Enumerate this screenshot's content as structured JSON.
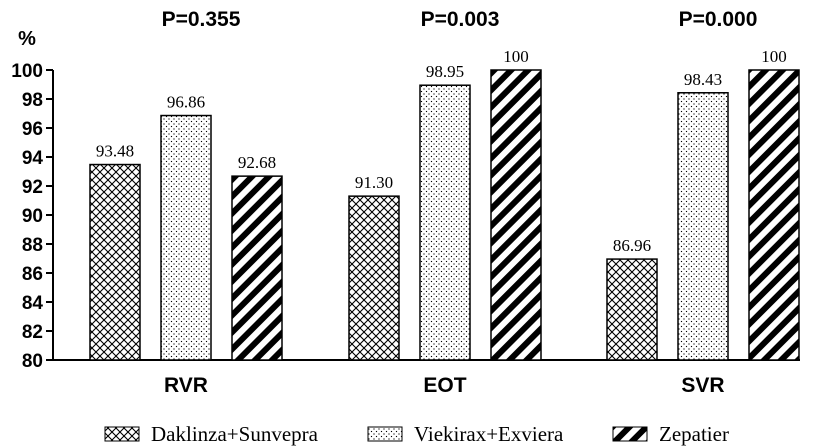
{
  "chart_data": {
    "type": "bar",
    "ylabel": "%",
    "ylim": [
      80,
      100
    ],
    "yticks": [
      80,
      82,
      84,
      86,
      88,
      90,
      92,
      94,
      96,
      98,
      100
    ],
    "categories": [
      "RVR",
      "EOT",
      "SVR"
    ],
    "pvalues": [
      "P=0.355",
      "P=0.003",
      "P=0.000"
    ],
    "series": [
      {
        "name": "Daklinza+Sunvepra",
        "values": [
          93.48,
          91.3,
          86.96
        ],
        "labels": [
          "93.48",
          "91.30",
          "86.96"
        ],
        "pattern": "crosshatch"
      },
      {
        "name": "Viekirax+Exviera",
        "values": [
          96.86,
          98.95,
          98.43
        ],
        "labels": [
          "96.86",
          "98.95",
          "98.43"
        ],
        "pattern": "dots"
      },
      {
        "name": "Zepatier",
        "values": [
          92.68,
          100,
          100
        ],
        "labels": [
          "92.68",
          "100",
          "100"
        ],
        "pattern": "diagonal"
      }
    ],
    "grid": false,
    "legend": "bottom"
  }
}
